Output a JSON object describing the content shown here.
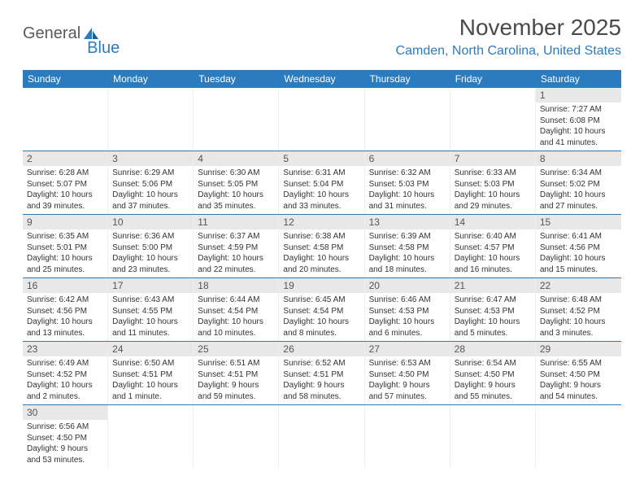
{
  "logo": {
    "text1": "General",
    "text2": "Blue"
  },
  "title": "November 2025",
  "location": "Camden, North Carolina, United States",
  "weekdays": [
    "Sunday",
    "Monday",
    "Tuesday",
    "Wednesday",
    "Thursday",
    "Friday",
    "Saturday"
  ],
  "colors": {
    "header_blue": "#2b7bbf",
    "daynum_bg": "#e8e8e8",
    "text": "#333333"
  },
  "weeks": [
    [
      null,
      null,
      null,
      null,
      null,
      null,
      {
        "n": "1",
        "sr": "Sunrise: 7:27 AM",
        "ss": "Sunset: 6:08 PM",
        "d1": "Daylight: 10 hours",
        "d2": "and 41 minutes."
      }
    ],
    [
      {
        "n": "2",
        "sr": "Sunrise: 6:28 AM",
        "ss": "Sunset: 5:07 PM",
        "d1": "Daylight: 10 hours",
        "d2": "and 39 minutes."
      },
      {
        "n": "3",
        "sr": "Sunrise: 6:29 AM",
        "ss": "Sunset: 5:06 PM",
        "d1": "Daylight: 10 hours",
        "d2": "and 37 minutes."
      },
      {
        "n": "4",
        "sr": "Sunrise: 6:30 AM",
        "ss": "Sunset: 5:05 PM",
        "d1": "Daylight: 10 hours",
        "d2": "and 35 minutes."
      },
      {
        "n": "5",
        "sr": "Sunrise: 6:31 AM",
        "ss": "Sunset: 5:04 PM",
        "d1": "Daylight: 10 hours",
        "d2": "and 33 minutes."
      },
      {
        "n": "6",
        "sr": "Sunrise: 6:32 AM",
        "ss": "Sunset: 5:03 PM",
        "d1": "Daylight: 10 hours",
        "d2": "and 31 minutes."
      },
      {
        "n": "7",
        "sr": "Sunrise: 6:33 AM",
        "ss": "Sunset: 5:03 PM",
        "d1": "Daylight: 10 hours",
        "d2": "and 29 minutes."
      },
      {
        "n": "8",
        "sr": "Sunrise: 6:34 AM",
        "ss": "Sunset: 5:02 PM",
        "d1": "Daylight: 10 hours",
        "d2": "and 27 minutes."
      }
    ],
    [
      {
        "n": "9",
        "sr": "Sunrise: 6:35 AM",
        "ss": "Sunset: 5:01 PM",
        "d1": "Daylight: 10 hours",
        "d2": "and 25 minutes."
      },
      {
        "n": "10",
        "sr": "Sunrise: 6:36 AM",
        "ss": "Sunset: 5:00 PM",
        "d1": "Daylight: 10 hours",
        "d2": "and 23 minutes."
      },
      {
        "n": "11",
        "sr": "Sunrise: 6:37 AM",
        "ss": "Sunset: 4:59 PM",
        "d1": "Daylight: 10 hours",
        "d2": "and 22 minutes."
      },
      {
        "n": "12",
        "sr": "Sunrise: 6:38 AM",
        "ss": "Sunset: 4:58 PM",
        "d1": "Daylight: 10 hours",
        "d2": "and 20 minutes."
      },
      {
        "n": "13",
        "sr": "Sunrise: 6:39 AM",
        "ss": "Sunset: 4:58 PM",
        "d1": "Daylight: 10 hours",
        "d2": "and 18 minutes."
      },
      {
        "n": "14",
        "sr": "Sunrise: 6:40 AM",
        "ss": "Sunset: 4:57 PM",
        "d1": "Daylight: 10 hours",
        "d2": "and 16 minutes."
      },
      {
        "n": "15",
        "sr": "Sunrise: 6:41 AM",
        "ss": "Sunset: 4:56 PM",
        "d1": "Daylight: 10 hours",
        "d2": "and 15 minutes."
      }
    ],
    [
      {
        "n": "16",
        "sr": "Sunrise: 6:42 AM",
        "ss": "Sunset: 4:56 PM",
        "d1": "Daylight: 10 hours",
        "d2": "and 13 minutes."
      },
      {
        "n": "17",
        "sr": "Sunrise: 6:43 AM",
        "ss": "Sunset: 4:55 PM",
        "d1": "Daylight: 10 hours",
        "d2": "and 11 minutes."
      },
      {
        "n": "18",
        "sr": "Sunrise: 6:44 AM",
        "ss": "Sunset: 4:54 PM",
        "d1": "Daylight: 10 hours",
        "d2": "and 10 minutes."
      },
      {
        "n": "19",
        "sr": "Sunrise: 6:45 AM",
        "ss": "Sunset: 4:54 PM",
        "d1": "Daylight: 10 hours",
        "d2": "and 8 minutes."
      },
      {
        "n": "20",
        "sr": "Sunrise: 6:46 AM",
        "ss": "Sunset: 4:53 PM",
        "d1": "Daylight: 10 hours",
        "d2": "and 6 minutes."
      },
      {
        "n": "21",
        "sr": "Sunrise: 6:47 AM",
        "ss": "Sunset: 4:53 PM",
        "d1": "Daylight: 10 hours",
        "d2": "and 5 minutes."
      },
      {
        "n": "22",
        "sr": "Sunrise: 6:48 AM",
        "ss": "Sunset: 4:52 PM",
        "d1": "Daylight: 10 hours",
        "d2": "and 3 minutes."
      }
    ],
    [
      {
        "n": "23",
        "sr": "Sunrise: 6:49 AM",
        "ss": "Sunset: 4:52 PM",
        "d1": "Daylight: 10 hours",
        "d2": "and 2 minutes."
      },
      {
        "n": "24",
        "sr": "Sunrise: 6:50 AM",
        "ss": "Sunset: 4:51 PM",
        "d1": "Daylight: 10 hours",
        "d2": "and 1 minute."
      },
      {
        "n": "25",
        "sr": "Sunrise: 6:51 AM",
        "ss": "Sunset: 4:51 PM",
        "d1": "Daylight: 9 hours",
        "d2": "and 59 minutes."
      },
      {
        "n": "26",
        "sr": "Sunrise: 6:52 AM",
        "ss": "Sunset: 4:51 PM",
        "d1": "Daylight: 9 hours",
        "d2": "and 58 minutes."
      },
      {
        "n": "27",
        "sr": "Sunrise: 6:53 AM",
        "ss": "Sunset: 4:50 PM",
        "d1": "Daylight: 9 hours",
        "d2": "and 57 minutes."
      },
      {
        "n": "28",
        "sr": "Sunrise: 6:54 AM",
        "ss": "Sunset: 4:50 PM",
        "d1": "Daylight: 9 hours",
        "d2": "and 55 minutes."
      },
      {
        "n": "29",
        "sr": "Sunrise: 6:55 AM",
        "ss": "Sunset: 4:50 PM",
        "d1": "Daylight: 9 hours",
        "d2": "and 54 minutes."
      }
    ],
    [
      {
        "n": "30",
        "sr": "Sunrise: 6:56 AM",
        "ss": "Sunset: 4:50 PM",
        "d1": "Daylight: 9 hours",
        "d2": "and 53 minutes."
      },
      null,
      null,
      null,
      null,
      null,
      null
    ]
  ]
}
